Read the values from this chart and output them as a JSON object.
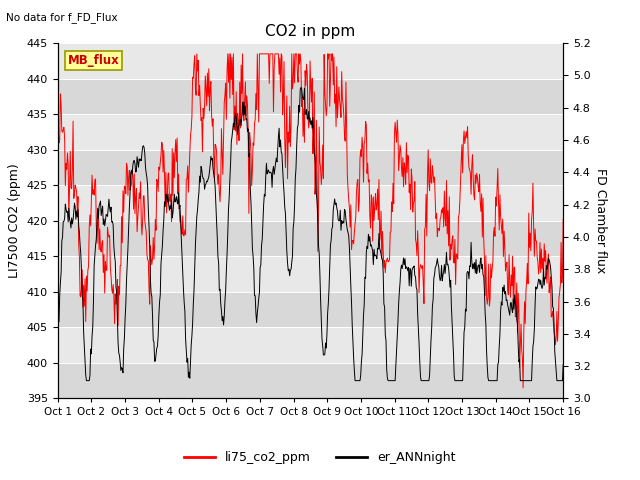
{
  "title": "CO2 in ppm",
  "top_left_text": "No data for f_FD_Flux",
  "ylabel_left": "LI7500 CO2 (ppm)",
  "ylabel_right": "FD Chamber flux",
  "ylim_left": [
    395,
    445
  ],
  "ylim_right": [
    3.0,
    5.2
  ],
  "xtick_labels": [
    "Oct 1",
    "Oct 2",
    "Oct 3",
    "Oct 4",
    "Oct 5",
    "Oct 6",
    "Oct 7",
    "Oct 8",
    "Oct 9",
    "Oct 10",
    "Oct 11",
    "Oct 12",
    "Oct 13",
    "Oct 14",
    "Oct 15",
    "Oct 16"
  ],
  "yticks_left": [
    395,
    400,
    405,
    410,
    415,
    420,
    425,
    430,
    435,
    440,
    445
  ],
  "yticks_right": [
    3.0,
    3.2,
    3.4,
    3.6,
    3.8,
    4.0,
    4.2,
    4.4,
    4.6,
    4.8,
    5.0,
    5.2
  ],
  "legend_labels": [
    "li75_co2_ppm",
    "er_ANNnight"
  ],
  "mb_flux_box": "MB_flux",
  "bg_color": "#e8e8e8",
  "bg_color_alt": "#d8d8d8",
  "line_color_red": "#ff0000",
  "line_color_black": "#000000",
  "grid_color": "#ffffff",
  "title_fontsize": 11,
  "axis_fontsize": 9,
  "tick_fontsize": 8,
  "legend_fontsize": 9
}
